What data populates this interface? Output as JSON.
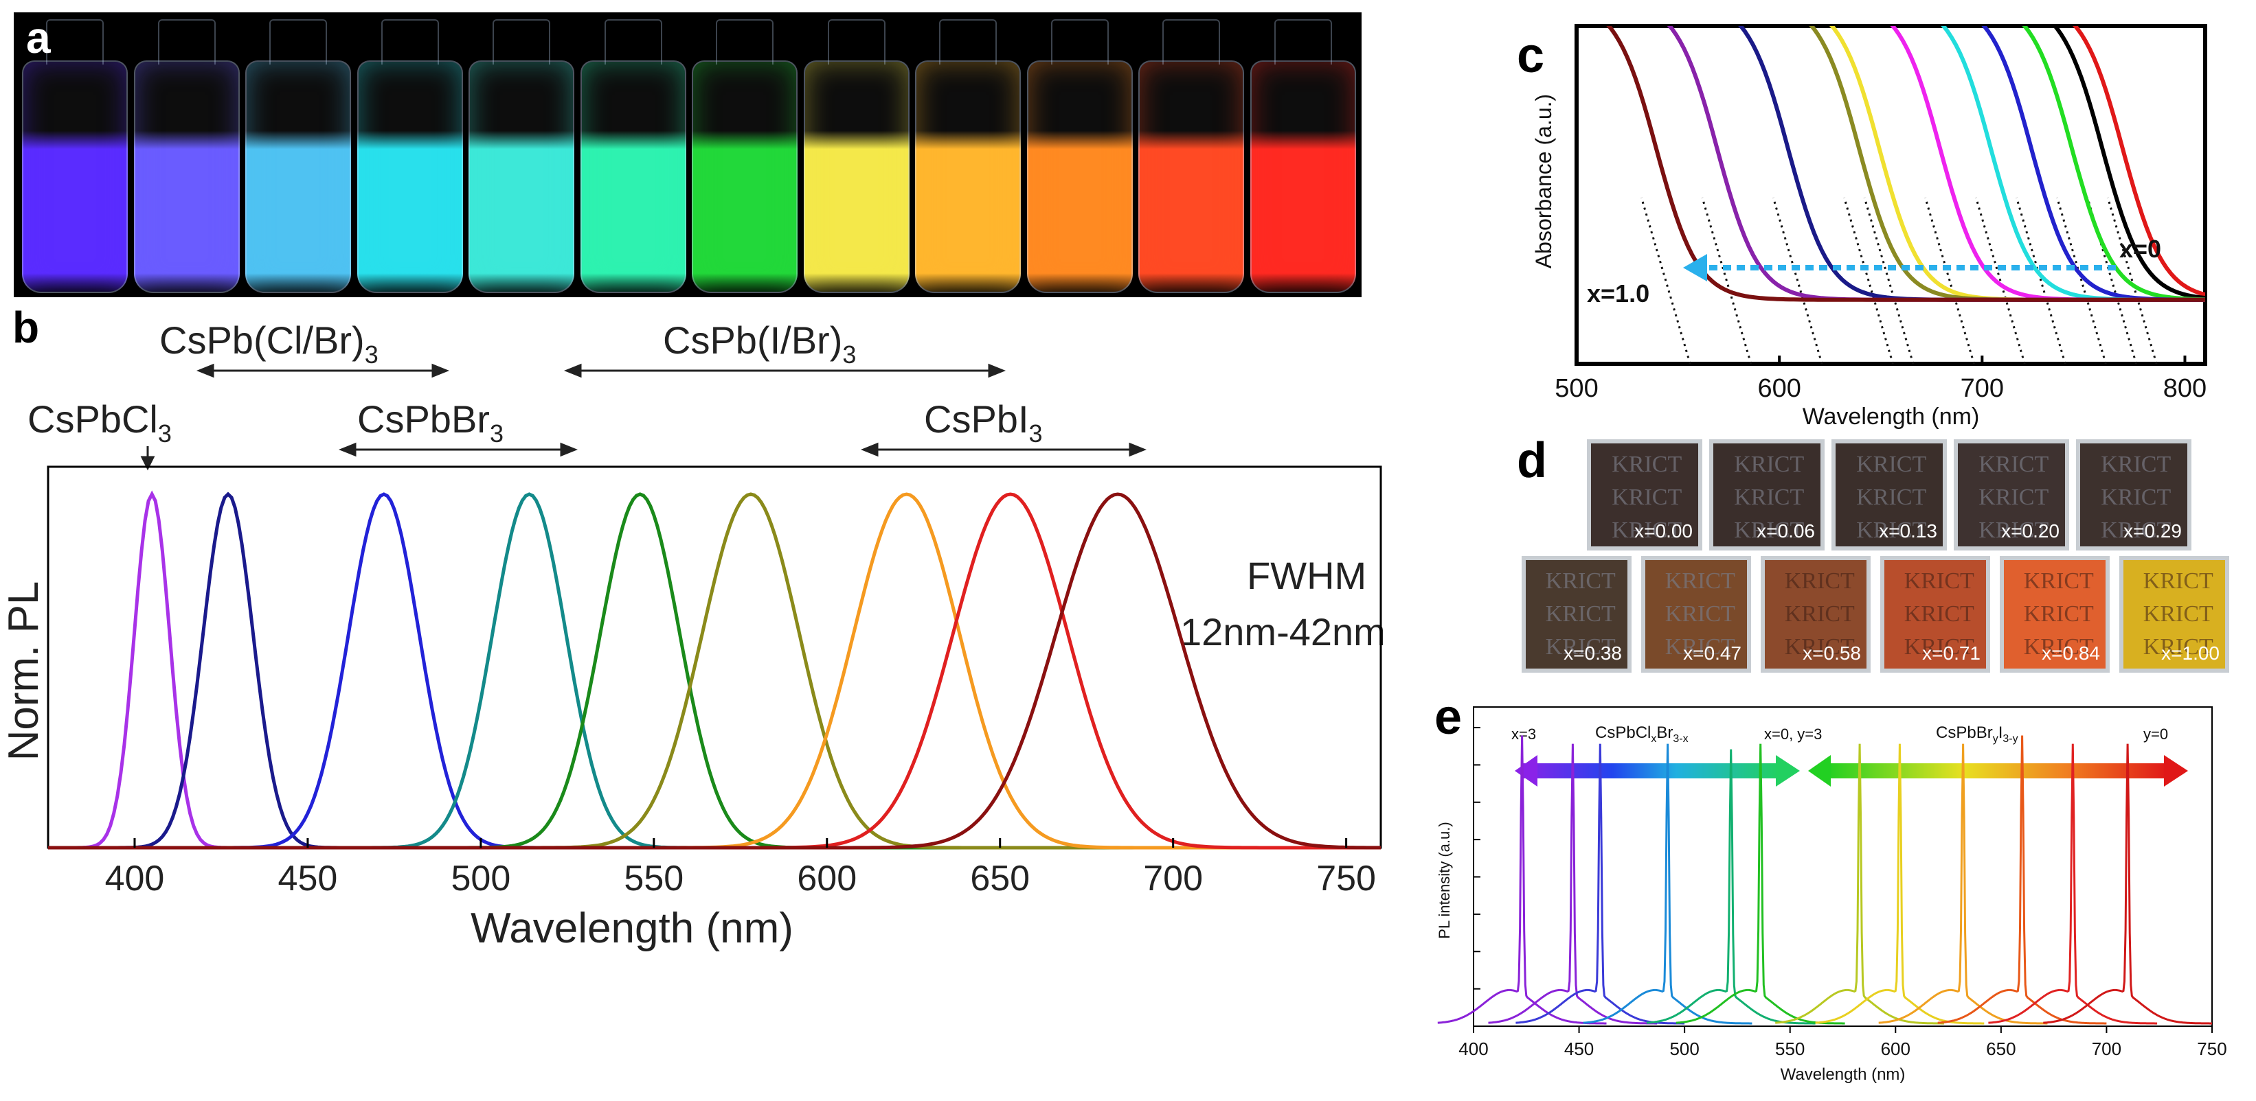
{
  "panels": {
    "a": {
      "letter": "a",
      "vial_colors": [
        "#5a2cff",
        "#6a5cff",
        "#4fc2f2",
        "#29e0ec",
        "#3de8d8",
        "#2ef2b0",
        "#22d83a",
        "#f4e84a",
        "#ffb62e",
        "#ff8a22",
        "#ff4a24",
        "#ff2a22"
      ]
    },
    "b": {
      "letter": "b",
      "labels": {
        "cspbclbr": "CsPb(Cl/Br)",
        "cspbibr": "CsPb(I/Br)",
        "cspbcl3": "CsPbCl",
        "cspbbr3": "CsPbBr",
        "cspbi3": "CsPbI",
        "sub3": "3",
        "fwhm": "FWHM",
        "fwhm_range": "12nm-42nm"
      }
    },
    "c": {
      "letter": "c",
      "x_label_annot": "x=0",
      "x_label_annot2": "x=1.0"
    },
    "d": {
      "letter": "d",
      "film_text": "KRICT",
      "row1": [
        "x=0.00",
        "x=0.06",
        "x=0.13",
        "x=0.20",
        "x=0.29"
      ],
      "row2": [
        "x=0.38",
        "x=0.47",
        "x=0.58",
        "x=0.71",
        "x=0.84",
        "x=1.00"
      ],
      "row1_colors": [
        "#3c2f2c",
        "#3a2e2b",
        "#3b2f2b",
        "#3e3230",
        "#3d312d"
      ],
      "row2_colors": [
        "#4a3a2e",
        "#7a4a2a",
        "#8c4a2c",
        "#b84e2c",
        "#e0602e",
        "#d8b020"
      ]
    },
    "e": {
      "letter": "e",
      "labels": {
        "x3": "x=3",
        "cl_formula": "CsPbCl",
        "cl_sub1": "x",
        "cl_br": "Br",
        "cl_sub2": "3-x",
        "mid": "x=0, y=3",
        "br_formula": "CsPbBr",
        "br_sub1": "y",
        "br_i": "I",
        "br_sub2": "3-y",
        "y0": "y=0"
      }
    }
  },
  "chart_data": [
    {
      "panel": "b",
      "type": "line",
      "xlabel": "Wavelength (nm)",
      "ylabel": "Norm. PL",
      "xlim": [
        375,
        760
      ],
      "ylim": [
        0,
        1
      ],
      "x_ticks": [
        400,
        450,
        500,
        550,
        600,
        650,
        700,
        750
      ],
      "series": [
        {
          "peak": 405,
          "fwhm": 12,
          "color": "#a832e8"
        },
        {
          "peak": 427,
          "fwhm": 17,
          "color": "#1a1a8c"
        },
        {
          "peak": 472,
          "fwhm": 24,
          "color": "#2222d8"
        },
        {
          "peak": 514,
          "fwhm": 25,
          "color": "#138a8a"
        },
        {
          "peak": 546,
          "fwhm": 27,
          "color": "#1a8a1a"
        },
        {
          "peak": 578,
          "fwhm": 33,
          "color": "#8a8a1a"
        },
        {
          "peak": 623,
          "fwhm": 36,
          "color": "#f59a20"
        },
        {
          "peak": 653,
          "fwhm": 39,
          "color": "#e02020"
        },
        {
          "peak": 684,
          "fwhm": 42,
          "color": "#8a1010"
        }
      ]
    },
    {
      "panel": "c",
      "type": "line",
      "xlabel": "Wavelength (nm)",
      "ylabel": "Absorbance (a.u.)",
      "xlim": [
        500,
        810
      ],
      "x_ticks": [
        500,
        600,
        700,
        800
      ],
      "series": [
        {
          "edge": 770,
          "color": "#e01818"
        },
        {
          "edge": 760,
          "color": "#000000"
        },
        {
          "edge": 745,
          "color": "#22dd22"
        },
        {
          "edge": 725,
          "color": "#2222cc"
        },
        {
          "edge": 705,
          "color": "#22dddd"
        },
        {
          "edge": 680,
          "color": "#ee22ee"
        },
        {
          "edge": 650,
          "color": "#f0e030"
        },
        {
          "edge": 640,
          "color": "#8a8a22"
        },
        {
          "edge": 605,
          "color": "#1a1a88"
        },
        {
          "edge": 570,
          "color": "#8822aa"
        },
        {
          "edge": 540,
          "color": "#7a1010"
        }
      ]
    },
    {
      "panel": "e",
      "type": "line",
      "xlabel": "Wavelength (nm)",
      "ylabel": "PL intensity (a.u.)",
      "xlim": [
        400,
        750
      ],
      "x_ticks": [
        400,
        450,
        500,
        550,
        600,
        650,
        700,
        750
      ],
      "series": [
        {
          "peak": 423,
          "color": "#8a22d8",
          "h": 0.93
        },
        {
          "peak": 447,
          "color": "#8a22d8",
          "h": 0.9
        },
        {
          "peak": 460,
          "color": "#3a3ad8",
          "h": 0.9
        },
        {
          "peak": 492,
          "color": "#1a8ad8",
          "h": 0.9
        },
        {
          "peak": 522,
          "color": "#12b070",
          "h": 0.88
        },
        {
          "peak": 536,
          "color": "#22c022",
          "h": 0.9
        },
        {
          "peak": 583,
          "color": "#b8c822",
          "h": 0.9
        },
        {
          "peak": 602,
          "color": "#e8d020",
          "h": 0.9
        },
        {
          "peak": 632,
          "color": "#f0a020",
          "h": 0.9
        },
        {
          "peak": 660,
          "color": "#e85818",
          "h": 0.93
        },
        {
          "peak": 684,
          "color": "#e02222",
          "h": 0.9
        },
        {
          "peak": 710,
          "color": "#d01818",
          "h": 0.9
        }
      ]
    }
  ]
}
